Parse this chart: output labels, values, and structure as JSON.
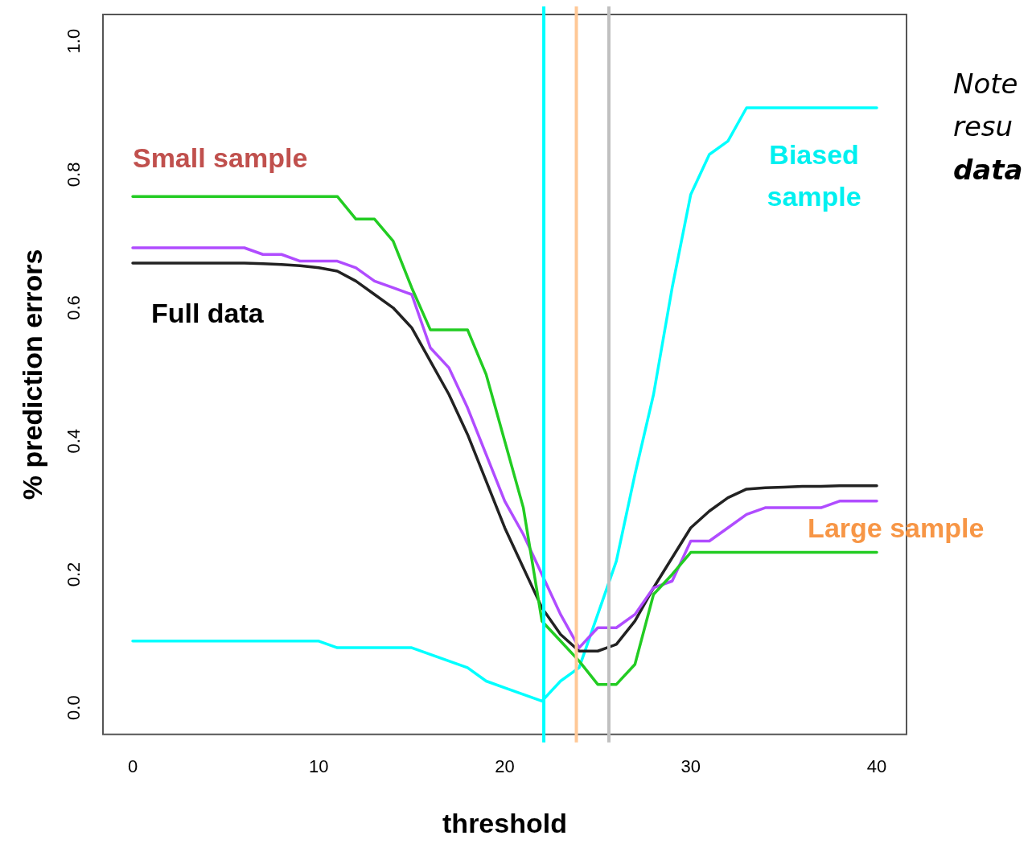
{
  "chart_data": {
    "type": "line",
    "xlabel": "threshold",
    "ylabel": "% prediction errors",
    "x": [
      0,
      1,
      2,
      3,
      4,
      5,
      6,
      7,
      8,
      9,
      10,
      11,
      12,
      13,
      14,
      15,
      16,
      17,
      18,
      19,
      20,
      21,
      22,
      23,
      24,
      25,
      26,
      27,
      28,
      29,
      30,
      31,
      32,
      33,
      34,
      35,
      36,
      37,
      38,
      39,
      40
    ],
    "series": [
      {
        "color": "#22cc22",
        "values": [
          0.767,
          0.767,
          0.767,
          0.767,
          0.767,
          0.767,
          0.767,
          0.767,
          0.767,
          0.767,
          0.767,
          0.767,
          0.733,
          0.733,
          0.7,
          0.63,
          0.567,
          0.567,
          0.567,
          0.5,
          0.4,
          0.3,
          0.13,
          0.1,
          0.07,
          0.035,
          0.035,
          0.065,
          0.17,
          0.2,
          0.233,
          0.233,
          0.233,
          0.233,
          0.233,
          0.233,
          0.233,
          0.233,
          0.233,
          0.233,
          0.233
        ]
      },
      {
        "color": "#b04cff",
        "values": [
          0.69,
          0.69,
          0.69,
          0.69,
          0.69,
          0.69,
          0.69,
          0.68,
          0.68,
          0.67,
          0.67,
          0.67,
          0.66,
          0.64,
          0.63,
          0.62,
          0.54,
          0.51,
          0.45,
          0.38,
          0.31,
          0.26,
          0.2,
          0.14,
          0.09,
          0.12,
          0.12,
          0.14,
          0.18,
          0.19,
          0.25,
          0.25,
          0.27,
          0.29,
          0.3,
          0.3,
          0.3,
          0.3,
          0.31,
          0.31,
          0.31
        ]
      },
      {
        "color": "#222222",
        "values": [
          0.667,
          0.667,
          0.667,
          0.667,
          0.667,
          0.667,
          0.667,
          0.666,
          0.665,
          0.663,
          0.66,
          0.655,
          0.64,
          0.62,
          0.6,
          0.57,
          0.52,
          0.47,
          0.41,
          0.34,
          0.27,
          0.21,
          0.15,
          0.11,
          0.085,
          0.085,
          0.095,
          0.13,
          0.18,
          0.225,
          0.27,
          0.295,
          0.315,
          0.328,
          0.33,
          0.331,
          0.332,
          0.332,
          0.333,
          0.333,
          0.333
        ]
      },
      {
        "color": "#00ffff",
        "values": [
          0.1,
          0.1,
          0.1,
          0.1,
          0.1,
          0.1,
          0.1,
          0.1,
          0.1,
          0.1,
          0.1,
          0.09,
          0.09,
          0.09,
          0.09,
          0.09,
          0.08,
          0.07,
          0.06,
          0.04,
          0.03,
          0.02,
          0.01,
          0.04,
          0.06,
          0.14,
          0.22,
          0.35,
          0.47,
          0.63,
          0.77,
          0.83,
          0.85,
          0.9,
          0.9,
          0.9,
          0.9,
          0.9,
          0.9,
          0.9,
          0.9
        ]
      }
    ],
    "xlim": [
      -1.6,
      41.6
    ],
    "ylim": [
      -0.04,
      1.04
    ],
    "xticks": [
      0,
      10,
      20,
      30,
      40
    ],
    "yticks": [
      {
        "value": 0,
        "label": "0.0"
      },
      {
        "value": 0.2,
        "label": "0.2"
      },
      {
        "value": 0.4,
        "label": "0.4"
      },
      {
        "value": 0.6,
        "label": "0.6"
      },
      {
        "value": 0.8,
        "label": "0.8"
      },
      {
        "value": 1,
        "label": "1.0"
      }
    ],
    "ref_lines": [
      {
        "axis": "x",
        "value": 22.1,
        "color": "#00ffff"
      },
      {
        "axis": "x",
        "value": 23.85,
        "color": "#ffc896"
      },
      {
        "axis": "x",
        "value": 25.6,
        "color": "#c0c0c0"
      }
    ],
    "annotations": [
      "Small sample",
      "Full data",
      "Biased sample",
      "Large sample",
      "Note",
      "resu",
      "data"
    ],
    "grid": false,
    "legend": false,
    "marker": "none",
    "line_style": "solid"
  }
}
